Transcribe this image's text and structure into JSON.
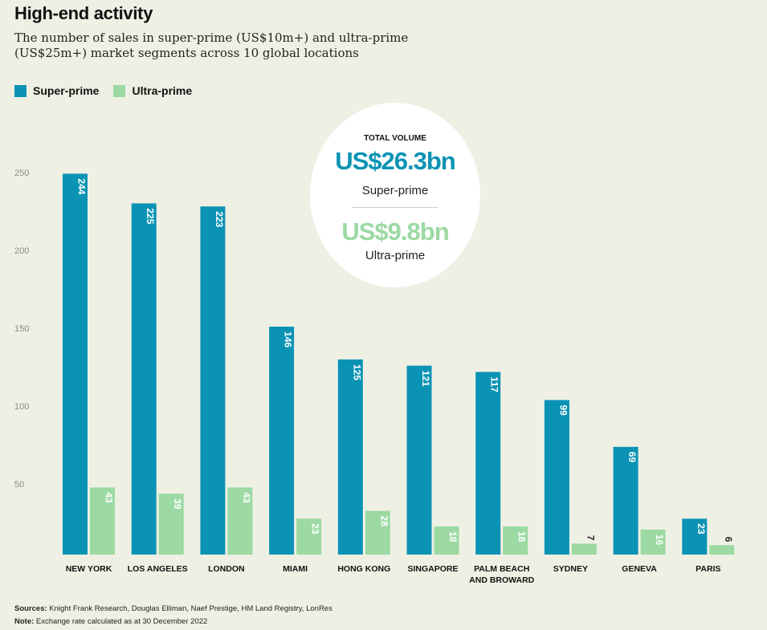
{
  "header": {
    "title": "High-end activity",
    "subtitle": "The number of sales in super-prime (US$10m+) and ultra-prime (US$25m+) market segments across 10 global locations"
  },
  "legend": [
    {
      "label": "Super-prime",
      "color": "#0a93b4"
    },
    {
      "label": "Ultra-prime",
      "color": "#9cd9a3"
    }
  ],
  "callout": {
    "heading": "TOTAL VOLUME",
    "super_value": "US$26.3bn",
    "super_label": "Super-prime",
    "ultra_value": "US$9.8bn",
    "ultra_label": "Ultra-prime"
  },
  "footer": {
    "sources_label": "Sources:",
    "sources_text": " Knight Frank Research, Douglas Elliman, Naef Prestige, HM Land Registry, LonRes",
    "note_label": "Note:",
    "note_text": " Exchange rate calculated as at 30 December 2022"
  },
  "chart_data": {
    "type": "bar",
    "title": "High-end activity",
    "xlabel": "",
    "ylabel": "",
    "ylim": [
      0,
      250
    ],
    "yticks": [
      50,
      100,
      150,
      200,
      250
    ],
    "grid": false,
    "legend_position": "top-left",
    "categories": [
      "NEW YORK",
      "LOS ANGELES",
      "LONDON",
      "MIAMI",
      "HONG KONG",
      "SINGAPORE",
      "PALM BEACH AND BROWARD",
      "SYDNEY",
      "GENEVA",
      "PARIS"
    ],
    "category_lines": [
      [
        "NEW YORK"
      ],
      [
        "LOS ANGELES"
      ],
      [
        "LONDON"
      ],
      [
        "MIAMI"
      ],
      [
        "HONG KONG"
      ],
      [
        "SINGAPORE"
      ],
      [
        "PALM BEACH",
        "AND BROWARD"
      ],
      [
        "SYDNEY"
      ],
      [
        "GENEVA"
      ],
      [
        "PARIS"
      ]
    ],
    "series": [
      {
        "name": "Super-prime",
        "color": "#0a93b4",
        "values": [
          244,
          225,
          223,
          146,
          125,
          121,
          117,
          99,
          69,
          23
        ]
      },
      {
        "name": "Ultra-prime",
        "color": "#9cd9a3",
        "values": [
          43,
          39,
          43,
          23,
          28,
          18,
          18,
          7,
          16,
          6
        ]
      }
    ]
  }
}
